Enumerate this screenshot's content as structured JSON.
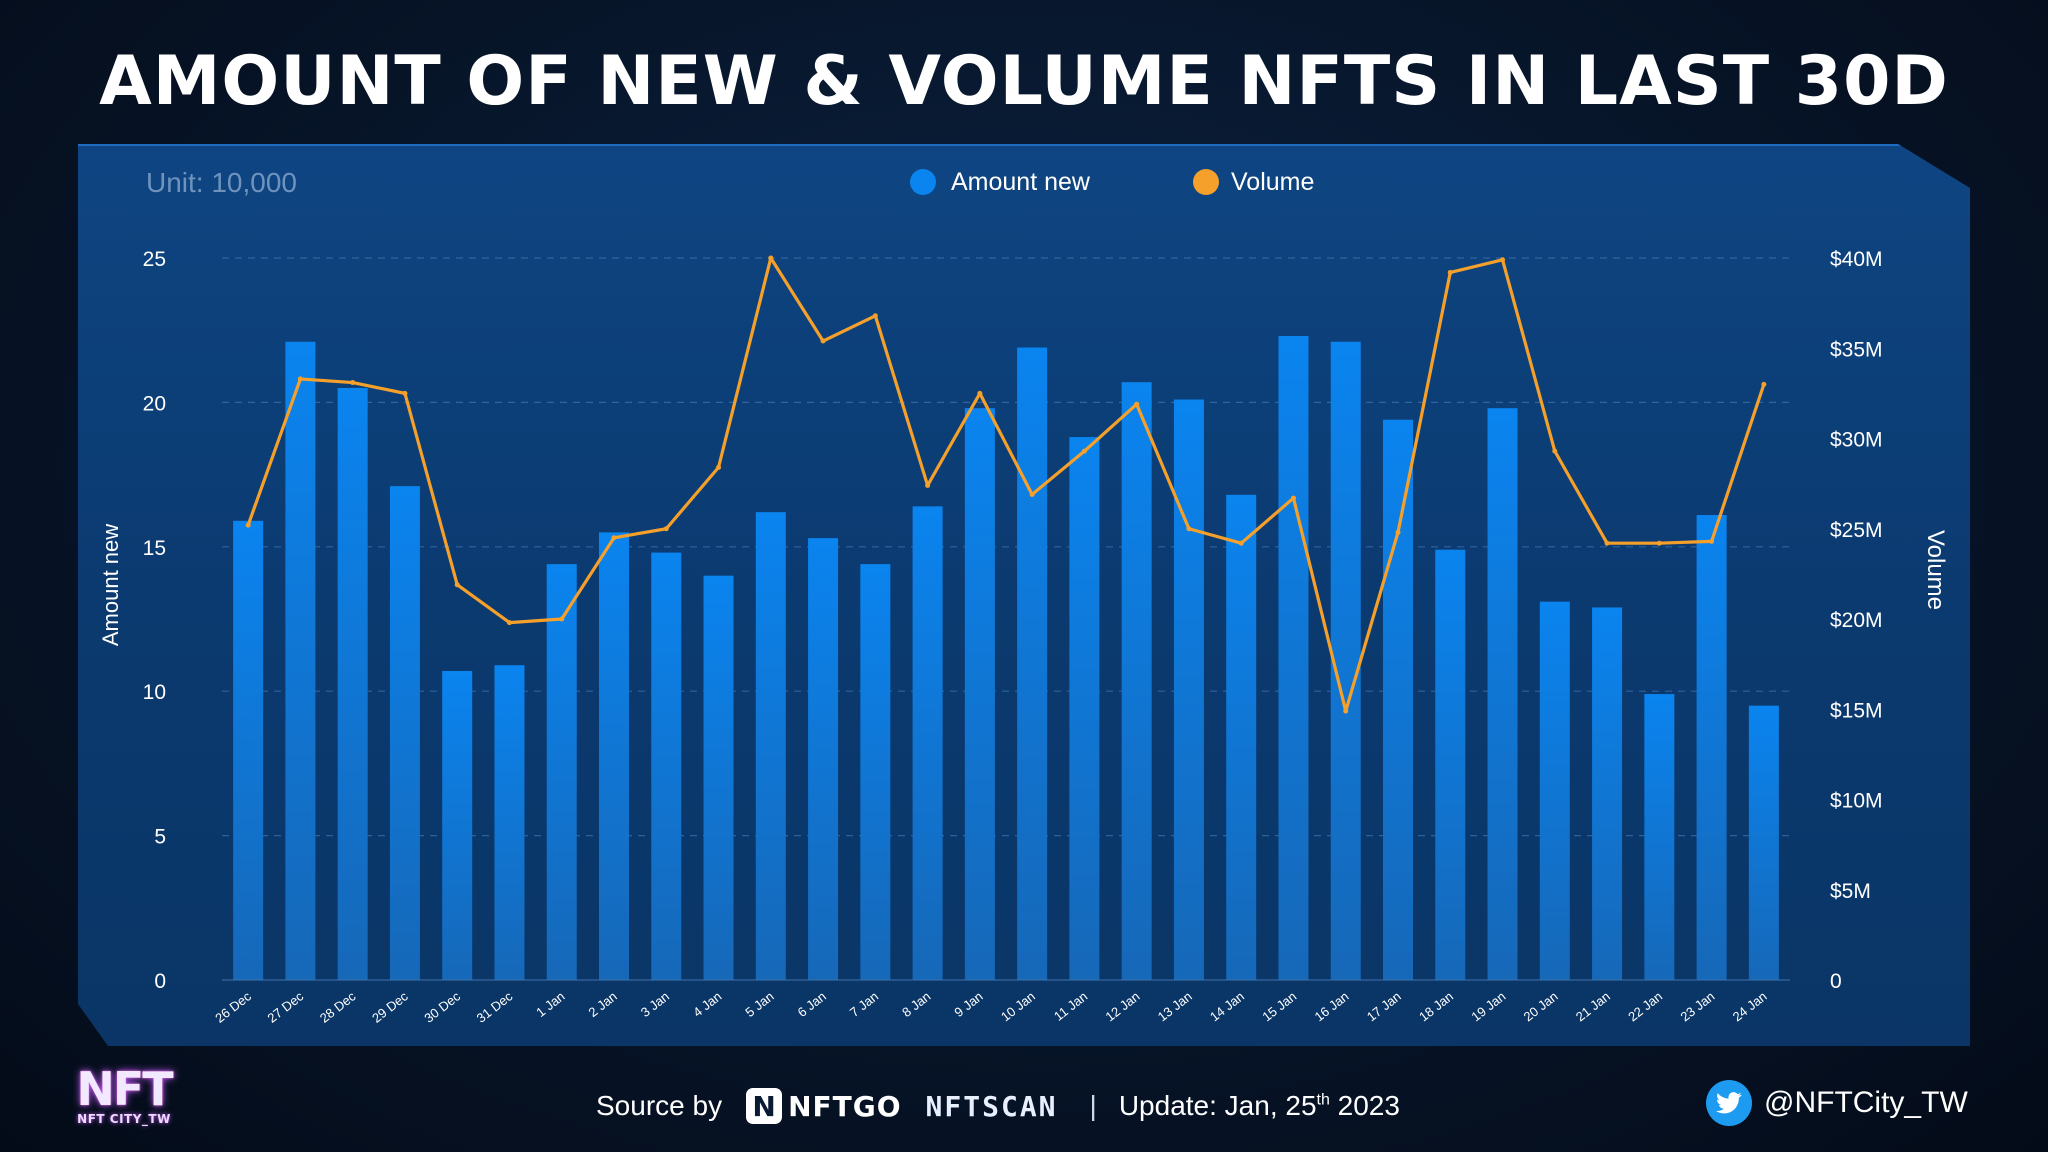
{
  "title": "AMOUNT OF NEW & VOLUME NFTS IN LAST 30D",
  "unit_label": "Unit: 10,000",
  "legend": {
    "amount": "Amount new",
    "volume": "Volume"
  },
  "colors": {
    "bar": "#0a84ef",
    "line": "#f5a02a",
    "panel": "#0b3c72",
    "background": "#071529"
  },
  "footer": {
    "source_label": "Source by",
    "nftgo": "NFTGO",
    "nftgo_mark": "N",
    "nftscan": "NFTSCAN",
    "separator": "|",
    "update": "Update: Jan, 25",
    "update_sup": "th",
    "update_year": " 2023",
    "twitter_handle": "@NFTCity_TW",
    "logo_big": "NFT",
    "logo_small": "NFT CITY_TW"
  },
  "chart_data": {
    "type": "bar",
    "title": "AMOUNT OF NEW & VOLUME NFTS IN LAST 30D",
    "xlabel": "",
    "ylabel": "Amount new",
    "y2label": "Volume",
    "ylim": [
      0,
      25
    ],
    "y2lim": [
      0,
      40
    ],
    "yticks": [
      "0",
      "5",
      "10",
      "15",
      "20",
      "25"
    ],
    "y2ticks": [
      "0",
      "$5M",
      "$10M",
      "$15M",
      "$20M",
      "$25M",
      "$30M",
      "$35M",
      "$40M"
    ],
    "grid": true,
    "categories": [
      "26 Dec",
      "27 Dec",
      "28 Dec",
      "29 Dec",
      "30 Dec",
      "31 Dec",
      "1 Jan",
      "2 Jan",
      "3 Jan",
      "4 Jan",
      "5 Jan",
      "6 Jan",
      "7 Jan",
      "8 Jan",
      "9 Jan",
      "10 Jan",
      "11 Jan",
      "12 Jan",
      "13 Jan",
      "14 Jan",
      "15 Jan",
      "16 Jan",
      "17 Jan",
      "18 Jan",
      "19 Jan",
      "20 Jan",
      "21 Jan",
      "22 Jan",
      "23 Jan",
      "24 Jan"
    ],
    "series": [
      {
        "name": "Amount new",
        "type": "bar",
        "axis": "left",
        "values": [
          15.9,
          22.1,
          20.5,
          17.1,
          10.7,
          10.9,
          14.4,
          15.5,
          14.8,
          14.0,
          16.2,
          15.3,
          14.4,
          16.4,
          19.8,
          21.9,
          18.8,
          20.7,
          20.1,
          16.8,
          22.3,
          22.1,
          19.4,
          14.9,
          19.8,
          13.1,
          12.9,
          9.9,
          16.1,
          9.5
        ]
      },
      {
        "name": "Volume",
        "type": "line",
        "axis": "right",
        "unit": "$M",
        "values": [
          25.2,
          33.3,
          33.1,
          32.5,
          21.9,
          19.8,
          20.0,
          24.5,
          25.0,
          28.4,
          40.0,
          35.4,
          36.8,
          27.4,
          32.5,
          26.9,
          29.3,
          31.9,
          25.0,
          24.2,
          26.7,
          14.9,
          24.8,
          39.2,
          39.9,
          29.3,
          24.2,
          24.2,
          24.3,
          33.0
        ]
      }
    ]
  }
}
